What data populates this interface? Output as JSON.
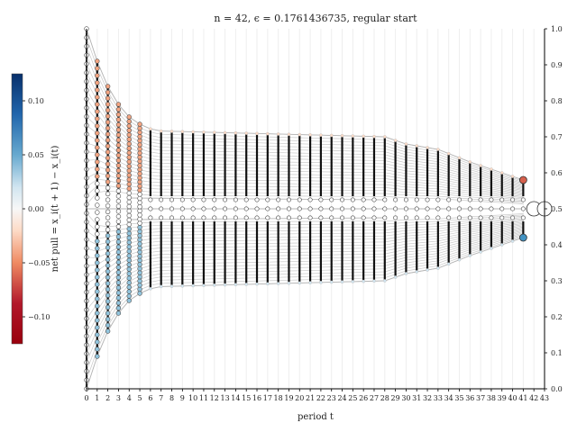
{
  "chart_data": {
    "type": "scatter",
    "title": "n = 42,  ϵ = 0.1761436735, regular start",
    "xlabel": "period t",
    "ylabel_right": "",
    "colorbar_label": "net pull = x_i(t + 1) − x_i(t)",
    "xlim": [
      0,
      43
    ],
    "ylim": [
      0.0,
      1.0
    ],
    "x_ticks": [
      "0",
      "1",
      "2",
      "3",
      "4",
      "5",
      "6",
      "7",
      "8",
      "9",
      "10",
      "11",
      "12",
      "13",
      "14",
      "15",
      "16",
      "17",
      "18",
      "19",
      "20",
      "21",
      "22",
      "23",
      "24",
      "25",
      "26",
      "27",
      "28",
      "29",
      "30",
      "31",
      "32",
      "33",
      "34",
      "35",
      "36",
      "37",
      "38",
      "39",
      "40",
      "41",
      "42",
      "43"
    ],
    "y_ticks": [
      "0.0",
      "0.1",
      "0.2",
      "0.3",
      "0.4",
      "0.5",
      "0.6",
      "0.7",
      "0.8",
      "0.9",
      "1.0"
    ],
    "colorbar_ticks": [
      "0.10",
      "0.05",
      "0.00",
      "−0.05",
      "−0.10"
    ],
    "colorbar_range": [
      -0.125,
      0.125
    ],
    "n_agents": 42,
    "cluster_envelope": {
      "upper": [
        {
          "t": 0,
          "y": 1.0
        },
        {
          "t": 1,
          "y": 0.91
        },
        {
          "t": 2,
          "y": 0.84
        },
        {
          "t": 3,
          "y": 0.79
        },
        {
          "t": 4,
          "y": 0.755
        },
        {
          "t": 5,
          "y": 0.735
        },
        {
          "t": 6,
          "y": 0.722
        },
        {
          "t": 7,
          "y": 0.716
        },
        {
          "t": 28,
          "y": 0.7
        },
        {
          "t": 30,
          "y": 0.68
        },
        {
          "t": 33,
          "y": 0.665
        },
        {
          "t": 36,
          "y": 0.63
        },
        {
          "t": 39,
          "y": 0.6
        },
        {
          "t": 41,
          "y": 0.58
        }
      ],
      "mid_upper": [
        {
          "t": 4,
          "y": 0.53
        },
        {
          "t": 28,
          "y": 0.525
        }
      ],
      "center": [
        {
          "t": 0,
          "y": 0.5
        },
        {
          "t": 43,
          "y": 0.5
        }
      ],
      "mid_lower": [
        {
          "t": 4,
          "y": 0.47
        },
        {
          "t": 28,
          "y": 0.475
        }
      ],
      "lower": [
        {
          "t": 0,
          "y": 0.0
        },
        {
          "t": 1,
          "y": 0.09
        },
        {
          "t": 2,
          "y": 0.16
        },
        {
          "t": 3,
          "y": 0.21
        },
        {
          "t": 4,
          "y": 0.245
        },
        {
          "t": 5,
          "y": 0.265
        },
        {
          "t": 6,
          "y": 0.278
        },
        {
          "t": 7,
          "y": 0.284
        },
        {
          "t": 28,
          "y": 0.3
        },
        {
          "t": 30,
          "y": 0.32
        },
        {
          "t": 33,
          "y": 0.335
        },
        {
          "t": 36,
          "y": 0.37
        },
        {
          "t": 39,
          "y": 0.4
        },
        {
          "t": 41,
          "y": 0.42
        }
      ]
    },
    "highlight_points": [
      {
        "t": 41,
        "y": 0.58,
        "color": "#d6604d"
      },
      {
        "t": 41,
        "y": 0.42,
        "color": "#4393c3"
      },
      {
        "t": 42,
        "y": 0.5,
        "color": "#ffffff"
      },
      {
        "t": 43,
        "y": 0.5,
        "color": "#ffffff"
      }
    ]
  }
}
